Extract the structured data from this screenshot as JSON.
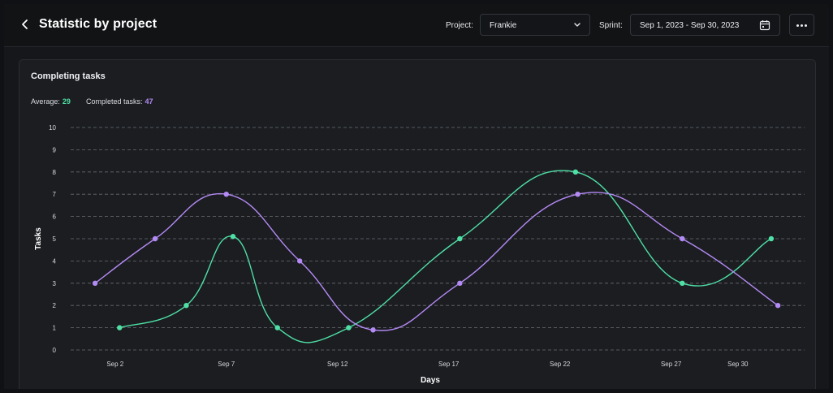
{
  "header": {
    "title": "Statistic by project",
    "project_label": "Project:",
    "project_value": "Frankie",
    "sprint_label": "Sprint:",
    "sprint_value": "Sep 1, 2023 - Sep 30, 2023",
    "icons": [
      "chevron-left-icon",
      "chevron-down-icon",
      "calendar-icon",
      "more-icon"
    ]
  },
  "card": {
    "title": "Completing tasks",
    "average_label": "Average:",
    "average_value": "29",
    "completed_label": "Completed tasks:",
    "completed_value": "47"
  },
  "colors": {
    "average": "#4fe0a5",
    "completed": "#b48af5",
    "grid": "#6a6d73",
    "background": "#1b1d21"
  },
  "chart_data": {
    "type": "line",
    "smooth": true,
    "xlabel": "Days",
    "ylabel": "Tasks",
    "ylim": [
      0,
      10
    ],
    "xlim": [
      0,
      33
    ],
    "x_ticks": [
      2,
      7,
      12,
      17,
      22,
      27,
      30
    ],
    "x_tick_labels": [
      "Sep 2",
      "Sep 7",
      "Sep 12",
      "Sep 17",
      "Sep 22",
      "Sep 27",
      "Sep 30"
    ],
    "y_ticks": [
      0,
      1,
      2,
      3,
      4,
      5,
      6,
      7,
      8,
      9,
      10
    ],
    "grid": true,
    "series": [
      {
        "key": "average",
        "color": "#4fe0a5",
        "x": [
          2.2,
          5.2,
          7.3,
          9.3,
          12.5,
          17.5,
          22.7,
          27.5,
          31.5
        ],
        "y": [
          1,
          2,
          5.1,
          1,
          1,
          5,
          8,
          3,
          5
        ]
      },
      {
        "key": "completed",
        "color": "#b48af5",
        "x": [
          1.1,
          3.8,
          7.0,
          10.3,
          13.6,
          17.5,
          22.8,
          27.5,
          31.8
        ],
        "y": [
          3,
          5,
          7,
          4,
          0.9,
          3,
          7,
          5,
          2
        ]
      }
    ]
  }
}
